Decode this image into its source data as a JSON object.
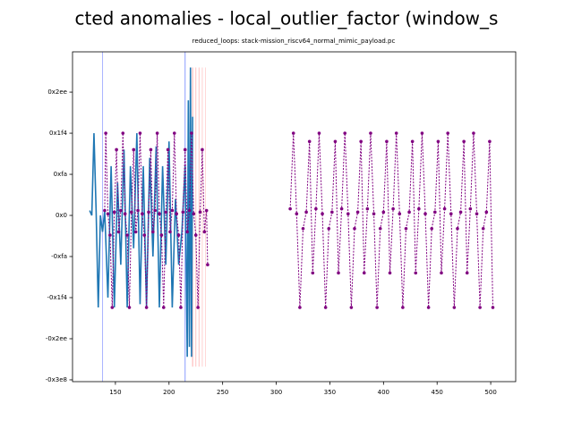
{
  "chart_data": {
    "type": "line",
    "title": "cted anomalies - local_outlier_factor (window_s",
    "subtitle": "reduced_loops: stack-mission_riscv64_normal_mimic_payload.pc",
    "xlim": [
      110,
      523.3
    ],
    "xticks": [
      150,
      200,
      250,
      300,
      350,
      400,
      450,
      500
    ],
    "ylim": [
      -1011,
      995
    ],
    "yticks": [
      {
        "value": -1000,
        "label": "-0x3e8"
      },
      {
        "value": -750,
        "label": "-0x2ee"
      },
      {
        "value": -500,
        "label": "-0x1f4"
      },
      {
        "value": -250,
        "label": "-0xfa"
      },
      {
        "value": 0,
        "label": "0x0"
      },
      {
        "value": 250,
        "label": "0xfa"
      },
      {
        "value": 500,
        "label": "0x1f4"
      },
      {
        "value": 750,
        "label": "0x2ee"
      }
    ],
    "vlines": [
      {
        "x": 138,
        "color": "#aab4ff"
      },
      {
        "x": 215,
        "color": "#8a9cff"
      },
      {
        "x": 222,
        "color": "#ffb0b0",
        "ymin": -920,
        "ymax": 900
      },
      {
        "x": 225,
        "color": "#ffc4c4",
        "ymin": -920,
        "ymax": 900
      },
      {
        "x": 228,
        "color": "#ffc4c4",
        "ymin": -920,
        "ymax": 900
      },
      {
        "x": 231,
        "color": "#ffd0d0",
        "ymin": -920,
        "ymax": 900
      },
      {
        "x": 234,
        "color": "#ffd8d8",
        "ymin": -920,
        "ymax": 900
      }
    ],
    "series": [
      {
        "color": "#1f77b4",
        "style": "solid",
        "markers": false,
        "x": [
          126,
          128,
          130,
          132,
          134,
          136,
          138,
          140,
          143,
          146,
          149,
          152,
          155,
          158,
          161,
          164,
          167,
          170,
          173,
          176,
          179,
          182,
          185,
          188,
          191,
          194,
          197,
          200,
          203,
          206,
          209,
          212,
          215,
          217,
          218,
          219,
          220,
          221,
          222
        ],
        "values": [
          30,
          0,
          500,
          30,
          -560,
          0,
          -100,
          30,
          -500,
          300,
          -560,
          200,
          -300,
          400,
          -560,
          300,
          -200,
          500,
          -540,
          300,
          -560,
          350,
          -250,
          420,
          -560,
          300,
          -300,
          450,
          -560,
          100,
          -300,
          -100,
          300,
          -860,
          700,
          -800,
          900,
          -860,
          600
        ]
      },
      {
        "color": "#800080",
        "style": "dotted",
        "markers": true,
        "x": [
          140,
          141,
          143,
          145,
          147,
          149,
          151,
          153,
          155,
          157,
          159,
          161,
          163,
          165,
          167,
          169,
          171,
          173,
          175,
          177,
          179,
          181,
          183,
          185,
          187,
          189,
          191,
          193,
          195,
          197,
          199,
          201,
          203,
          205,
          207,
          209,
          211,
          213,
          215,
          217,
          219,
          221,
          223,
          225,
          227,
          229,
          231,
          233,
          235,
          236,
          275,
          313,
          316,
          319,
          322,
          325,
          328,
          331,
          334,
          337,
          340,
          343,
          346,
          349,
          352,
          355,
          358,
          361,
          364,
          367,
          370,
          373,
          376,
          379,
          382,
          385,
          388,
          391,
          394,
          397,
          400,
          403,
          406,
          409,
          412,
          415,
          418,
          421,
          424,
          427,
          430,
          433,
          436,
          439,
          442,
          445,
          448,
          451,
          454,
          457,
          460,
          463,
          466,
          469,
          472,
          475,
          478,
          481,
          484,
          487,
          490,
          493,
          496,
          499,
          502
        ],
        "values": [
          30,
          500,
          10,
          -120,
          -560,
          20,
          400,
          -100,
          30,
          500,
          10,
          -120,
          -560,
          20,
          400,
          -100,
          30,
          500,
          10,
          -120,
          -560,
          20,
          400,
          -100,
          30,
          500,
          10,
          -120,
          -560,
          20,
          400,
          -100,
          30,
          500,
          10,
          -120,
          -560,
          20,
          400,
          -100,
          30,
          500,
          10,
          -120,
          -560,
          20,
          400,
          -100,
          30,
          -300,
          null,
          40,
          500,
          10,
          -560,
          -80,
          20,
          450,
          -350,
          40,
          500,
          10,
          -560,
          -80,
          20,
          450,
          -350,
          40,
          500,
          10,
          -560,
          -80,
          20,
          450,
          -350,
          40,
          500,
          10,
          -560,
          -80,
          20,
          450,
          -350,
          40,
          500,
          10,
          -560,
          -80,
          20,
          450,
          -350,
          40,
          500,
          10,
          -560,
          -80,
          20,
          450,
          -350,
          40,
          500,
          10,
          -560,
          -80,
          20,
          450,
          -350,
          40,
          500,
          10,
          -560,
          -80,
          20,
          450,
          -560
        ]
      }
    ]
  }
}
